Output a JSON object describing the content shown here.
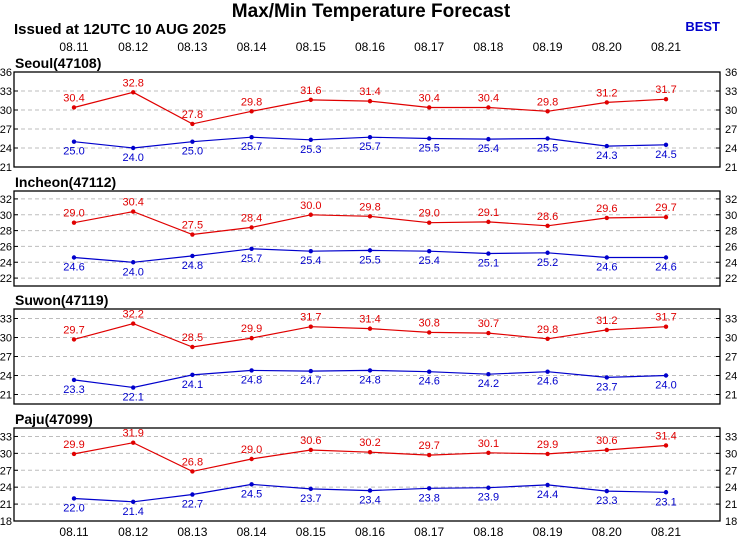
{
  "title": "Max/Min Temperature Forecast",
  "issued": "Issued at 12UTC 10 AUG 2025",
  "badge": "BEST",
  "colors": {
    "max": "#e00000",
    "min": "#0000cc",
    "grid": "#bdbdbd"
  },
  "chart_data": [
    {
      "type": "line",
      "station": "Seoul(47108)",
      "categories": [
        "08.11",
        "08.12",
        "08.13",
        "08.14",
        "08.15",
        "08.16",
        "08.17",
        "08.18",
        "08.19",
        "08.20",
        "08.21"
      ],
      "yticks": [
        21,
        24,
        27,
        30,
        33,
        36
      ],
      "ylim": [
        21,
        36
      ],
      "grid": true,
      "series": [
        {
          "color": "#e00000",
          "values": [
            30.4,
            32.8,
            27.8,
            29.8,
            31.6,
            31.4,
            30.4,
            30.4,
            29.8,
            31.2,
            31.7
          ]
        },
        {
          "color": "#0000cc",
          "values": [
            25.0,
            24.0,
            25.0,
            25.7,
            25.3,
            25.7,
            25.5,
            25.4,
            25.5,
            24.3,
            24.5
          ]
        }
      ]
    },
    {
      "type": "line",
      "station": "Incheon(47112)",
      "categories": [
        "08.11",
        "08.12",
        "08.13",
        "08.14",
        "08.15",
        "08.16",
        "08.17",
        "08.18",
        "08.19",
        "08.20",
        "08.21"
      ],
      "yticks": [
        22,
        24,
        26,
        28,
        30,
        32
      ],
      "ylim": [
        21,
        33
      ],
      "grid": true,
      "series": [
        {
          "color": "#e00000",
          "values": [
            29.0,
            30.4,
            27.5,
            28.4,
            30.0,
            29.8,
            29.0,
            29.1,
            28.6,
            29.6,
            29.7
          ]
        },
        {
          "color": "#0000cc",
          "values": [
            24.6,
            24.0,
            24.8,
            25.7,
            25.4,
            25.5,
            25.4,
            25.1,
            25.2,
            24.6,
            24.6
          ]
        }
      ]
    },
    {
      "type": "line",
      "station": "Suwon(47119)",
      "categories": [
        "08.11",
        "08.12",
        "08.13",
        "08.14",
        "08.15",
        "08.16",
        "08.17",
        "08.18",
        "08.19",
        "08.20",
        "08.21"
      ],
      "yticks": [
        21,
        24,
        27,
        30,
        33
      ],
      "ylim": [
        19.5,
        34.5
      ],
      "grid": true,
      "series": [
        {
          "color": "#e00000",
          "values": [
            29.7,
            32.2,
            28.5,
            29.9,
            31.7,
            31.4,
            30.8,
            30.7,
            29.8,
            31.2,
            31.7
          ]
        },
        {
          "color": "#0000cc",
          "values": [
            23.3,
            22.1,
            24.1,
            24.8,
            24.7,
            24.8,
            24.6,
            24.2,
            24.6,
            23.7,
            24.0
          ]
        }
      ]
    },
    {
      "type": "line",
      "station": "Paju(47099)",
      "categories": [
        "08.11",
        "08.12",
        "08.13",
        "08.14",
        "08.15",
        "08.16",
        "08.17",
        "08.18",
        "08.19",
        "08.20",
        "08.21"
      ],
      "yticks": [
        18,
        21,
        24,
        27,
        30,
        33
      ],
      "ylim": [
        18,
        34.5
      ],
      "grid": true,
      "series": [
        {
          "color": "#e00000",
          "values": [
            29.9,
            31.9,
            26.8,
            29.0,
            30.6,
            30.2,
            29.7,
            30.1,
            29.9,
            30.6,
            31.4
          ]
        },
        {
          "color": "#0000cc",
          "values": [
            22.0,
            21.4,
            22.7,
            24.5,
            23.7,
            23.4,
            23.8,
            23.9,
            24.4,
            23.3,
            23.1
          ]
        }
      ]
    }
  ]
}
